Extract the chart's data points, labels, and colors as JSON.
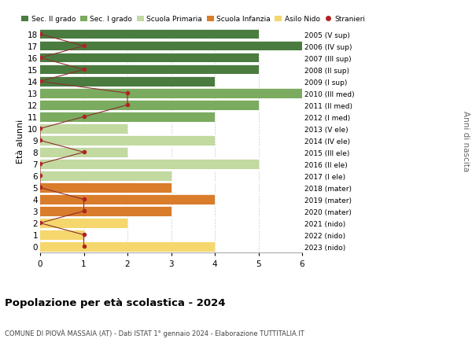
{
  "ages": [
    18,
    17,
    16,
    15,
    14,
    13,
    12,
    11,
    10,
    9,
    8,
    7,
    6,
    5,
    4,
    3,
    2,
    1,
    0
  ],
  "years": [
    "2005 (V sup)",
    "2006 (IV sup)",
    "2007 (III sup)",
    "2008 (II sup)",
    "2009 (I sup)",
    "2010 (III med)",
    "2011 (II med)",
    "2012 (I med)",
    "2013 (V ele)",
    "2014 (IV ele)",
    "2015 (III ele)",
    "2016 (II ele)",
    "2017 (I ele)",
    "2018 (mater)",
    "2019 (mater)",
    "2020 (mater)",
    "2021 (nido)",
    "2022 (nido)",
    "2023 (nido)"
  ],
  "bar_values": [
    5,
    6,
    5,
    5,
    4,
    6,
    5,
    4,
    2,
    4,
    2,
    5,
    3,
    3,
    4,
    3,
    2,
    1,
    4
  ],
  "stranieri": [
    0,
    1,
    0,
    1,
    0,
    2,
    2,
    1,
    0,
    0,
    1,
    0,
    0,
    0,
    1,
    1,
    0,
    1,
    1
  ],
  "bar_colors": [
    "#4a7c3f",
    "#4a7c3f",
    "#4a7c3f",
    "#4a7c3f",
    "#4a7c3f",
    "#7aab5e",
    "#7aab5e",
    "#7aab5e",
    "#c2d9a0",
    "#c2d9a0",
    "#c2d9a0",
    "#c2d9a0",
    "#c2d9a0",
    "#d97c2b",
    "#d97c2b",
    "#d97c2b",
    "#f5d76e",
    "#f5d76e",
    "#f5d76e"
  ],
  "legend_labels": [
    "Sec. II grado",
    "Sec. I grado",
    "Scuola Primaria",
    "Scuola Infanzia",
    "Asilo Nido",
    "Stranieri"
  ],
  "legend_colors": [
    "#4a7c3f",
    "#7aab5e",
    "#c2d9a0",
    "#d97c2b",
    "#f5d76e",
    "#b22222"
  ],
  "title": "Popolazione per età scolastica - 2024",
  "subtitle": "COMUNE DI PIOVÀ MASSAIA (AT) - Dati ISTAT 1° gennaio 2024 - Elaborazione TUTTITALIA.IT",
  "ylabel_left": "Età alunni",
  "ylabel_right": "Anni di nascita",
  "xlim": [
    0,
    6
  ],
  "stranieri_color": "#b22222",
  "line_color": "#8b3030",
  "background_color": "#ffffff"
}
